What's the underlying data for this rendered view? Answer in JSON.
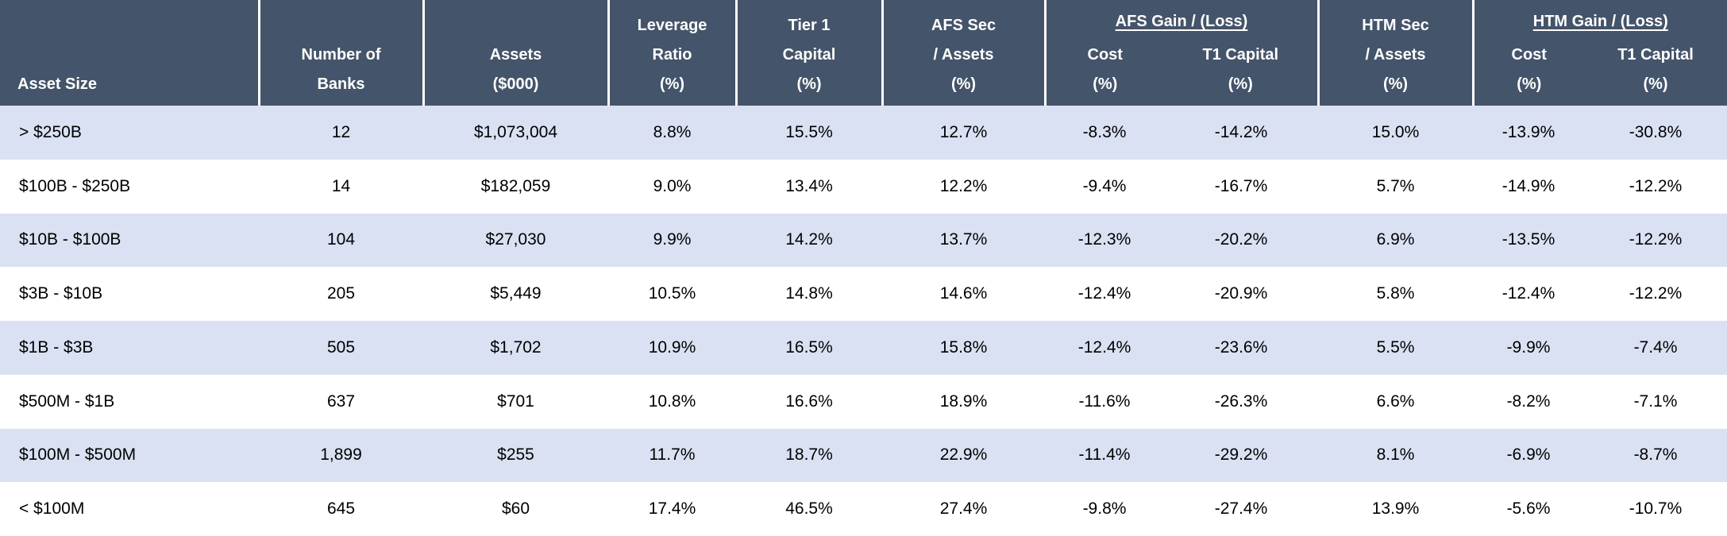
{
  "table": {
    "header": {
      "asset_size": "Asset Size",
      "number_of_banks": "Number of\nBanks",
      "assets": "Assets\n($000)",
      "leverage_ratio": "Leverage\nRatio\n(%)",
      "tier1_capital": "Tier 1\nCapital\n(%)",
      "afs_sec_assets": "AFS Sec\n/ Assets\n(%)",
      "afs_gain_loss_group": "AFS Gain / (Loss)",
      "afs_cost": "Cost\n(%)",
      "afs_t1_capital": "T1 Capital\n(%)",
      "htm_sec_assets": "HTM Sec\n/ Assets\n(%)",
      "htm_gain_loss_group": "HTM Gain / (Loss)",
      "htm_cost": "Cost\n(%)",
      "htm_t1_capital": "T1 Capital\n(%)"
    },
    "rows": [
      [
        "> $250B",
        "12",
        "$1,073,004",
        "8.8%",
        "15.5%",
        "12.7%",
        "-8.3%",
        "-14.2%",
        "15.0%",
        "-13.9%",
        "-30.8%"
      ],
      [
        "$100B - $250B",
        "14",
        "$182,059",
        "9.0%",
        "13.4%",
        "12.2%",
        "-9.4%",
        "-16.7%",
        "5.7%",
        "-14.9%",
        "-12.2%"
      ],
      [
        "$10B - $100B",
        "104",
        "$27,030",
        "9.9%",
        "14.2%",
        "13.7%",
        "-12.3%",
        "-20.2%",
        "6.9%",
        "-13.5%",
        "-12.2%"
      ],
      [
        "$3B - $10B",
        "205",
        "$5,449",
        "10.5%",
        "14.8%",
        "14.6%",
        "-12.4%",
        "-20.9%",
        "5.8%",
        "-12.4%",
        "-12.2%"
      ],
      [
        "$1B - $3B",
        "505",
        "$1,702",
        "10.9%",
        "16.5%",
        "15.8%",
        "-12.4%",
        "-23.6%",
        "5.5%",
        "-9.9%",
        "-7.4%"
      ],
      [
        "$500M - $1B",
        "637",
        "$701",
        "10.8%",
        "16.6%",
        "18.9%",
        "-11.6%",
        "-26.3%",
        "6.6%",
        "-8.2%",
        "-7.1%"
      ],
      [
        "$100M - $500M",
        "1,899",
        "$255",
        "11.7%",
        "18.7%",
        "22.9%",
        "-11.4%",
        "-29.2%",
        "8.1%",
        "-6.9%",
        "-8.7%"
      ],
      [
        "< $100M",
        "645",
        "$60",
        "17.4%",
        "46.5%",
        "27.4%",
        "-9.8%",
        "-27.4%",
        "13.9%",
        "-5.6%",
        "-10.7%"
      ]
    ],
    "colors": {
      "header_bg": "#44546A",
      "header_text": "#FFFFFF",
      "stripe_bg": "#D9E1F2",
      "row_bg": "#FFFFFF",
      "body_text": "#000000",
      "separator": "#FFFFFF"
    }
  },
  "chart_data": {
    "type": "table",
    "columns": [
      "Asset Size",
      "Number of Banks",
      "Assets ($000)",
      "Leverage Ratio (%)",
      "Tier 1 Capital (%)",
      "AFS Sec / Assets (%)",
      "AFS Gain / (Loss) Cost (%)",
      "AFS Gain / (Loss) T1 Capital (%)",
      "HTM Sec / Assets (%)",
      "HTM Gain / (Loss) Cost (%)",
      "HTM Gain / (Loss) T1 Capital (%)"
    ],
    "column_groups": [
      {
        "label": "AFS Gain / (Loss)",
        "columns": [
          "Cost (%)",
          "T1 Capital (%)"
        ]
      },
      {
        "label": "HTM Gain / (Loss)",
        "columns": [
          "Cost (%)",
          "T1 Capital (%)"
        ]
      }
    ],
    "rows": [
      [
        "> $250B",
        12,
        1073004,
        8.8,
        15.5,
        12.7,
        -8.3,
        -14.2,
        15.0,
        -13.9,
        -30.8
      ],
      [
        "$100B - $250B",
        14,
        182059,
        9.0,
        13.4,
        12.2,
        -9.4,
        -16.7,
        5.7,
        -14.9,
        -12.2
      ],
      [
        "$10B - $100B",
        104,
        27030,
        9.9,
        14.2,
        13.7,
        -12.3,
        -20.2,
        6.9,
        -13.5,
        -12.2
      ],
      [
        "$3B - $10B",
        205,
        5449,
        10.5,
        14.8,
        14.6,
        -12.4,
        -20.9,
        5.8,
        -12.4,
        -12.2
      ],
      [
        "$1B - $3B",
        505,
        1702,
        10.9,
        16.5,
        15.8,
        -12.4,
        -23.6,
        5.5,
        -9.9,
        -7.4
      ],
      [
        "$500M - $1B",
        637,
        701,
        10.8,
        16.6,
        18.9,
        -11.6,
        -26.3,
        6.6,
        -8.2,
        -7.1
      ],
      [
        "$100M - $500M",
        1899,
        255,
        11.7,
        18.7,
        22.9,
        -11.4,
        -29.2,
        8.1,
        -6.9,
        -8.7
      ],
      [
        "< $100M",
        645,
        60,
        17.4,
        46.5,
        27.4,
        -9.8,
        -27.4,
        13.9,
        -5.6,
        -10.7
      ]
    ]
  }
}
